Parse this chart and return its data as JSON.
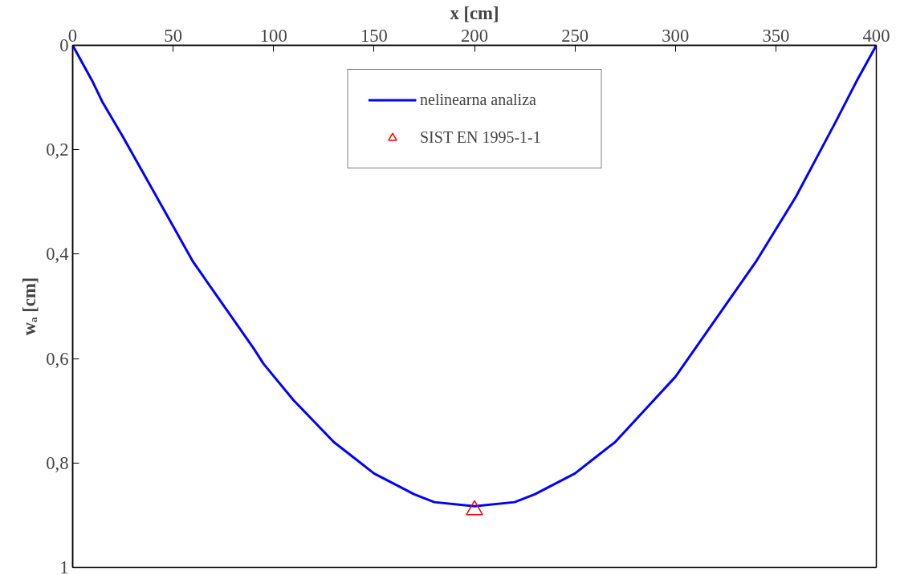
{
  "chart_data": {
    "type": "line",
    "xlabel": "x [cm]",
    "ylabel": "wₐ [cm]",
    "xlim": [
      0,
      400
    ],
    "xticks": [
      0,
      50,
      100,
      150,
      200,
      250,
      300,
      350,
      400
    ],
    "ylim": [
      1,
      0
    ],
    "yticks": [
      0,
      {
        "value": 0.2,
        "label": "0,2"
      },
      {
        "value": 0.4,
        "label": "0,4"
      },
      {
        "value": 0.6,
        "label": "0,6"
      },
      {
        "value": 0.8,
        "label": "0,8"
      },
      1
    ],
    "grid": false,
    "legend": "top",
    "series": [
      {
        "name": "nelinearna analiza",
        "color": "#0000ff",
        "marker": "none",
        "x": [
          0,
          10,
          15,
          25,
          60,
          90,
          95,
          110,
          130,
          140,
          150,
          170,
          180,
          200,
          220,
          230,
          250,
          260,
          270,
          300,
          340,
          360,
          380,
          390,
          400
        ],
        "values": [
          0,
          0.07,
          0.11,
          0.175,
          0.415,
          0.58,
          0.61,
          0.68,
          0.76,
          0.79,
          0.82,
          0.86,
          0.875,
          0.883,
          0.875,
          0.86,
          0.82,
          0.79,
          0.76,
          0.635,
          0.415,
          0.29,
          0.145,
          0.07,
          0
        ]
      },
      {
        "name": "SIST EN 1995-1-1",
        "type": "scatter",
        "color": "#ff0000",
        "marker": "triangle",
        "x": [
          200
        ],
        "values": [
          0.89
        ]
      }
    ]
  }
}
